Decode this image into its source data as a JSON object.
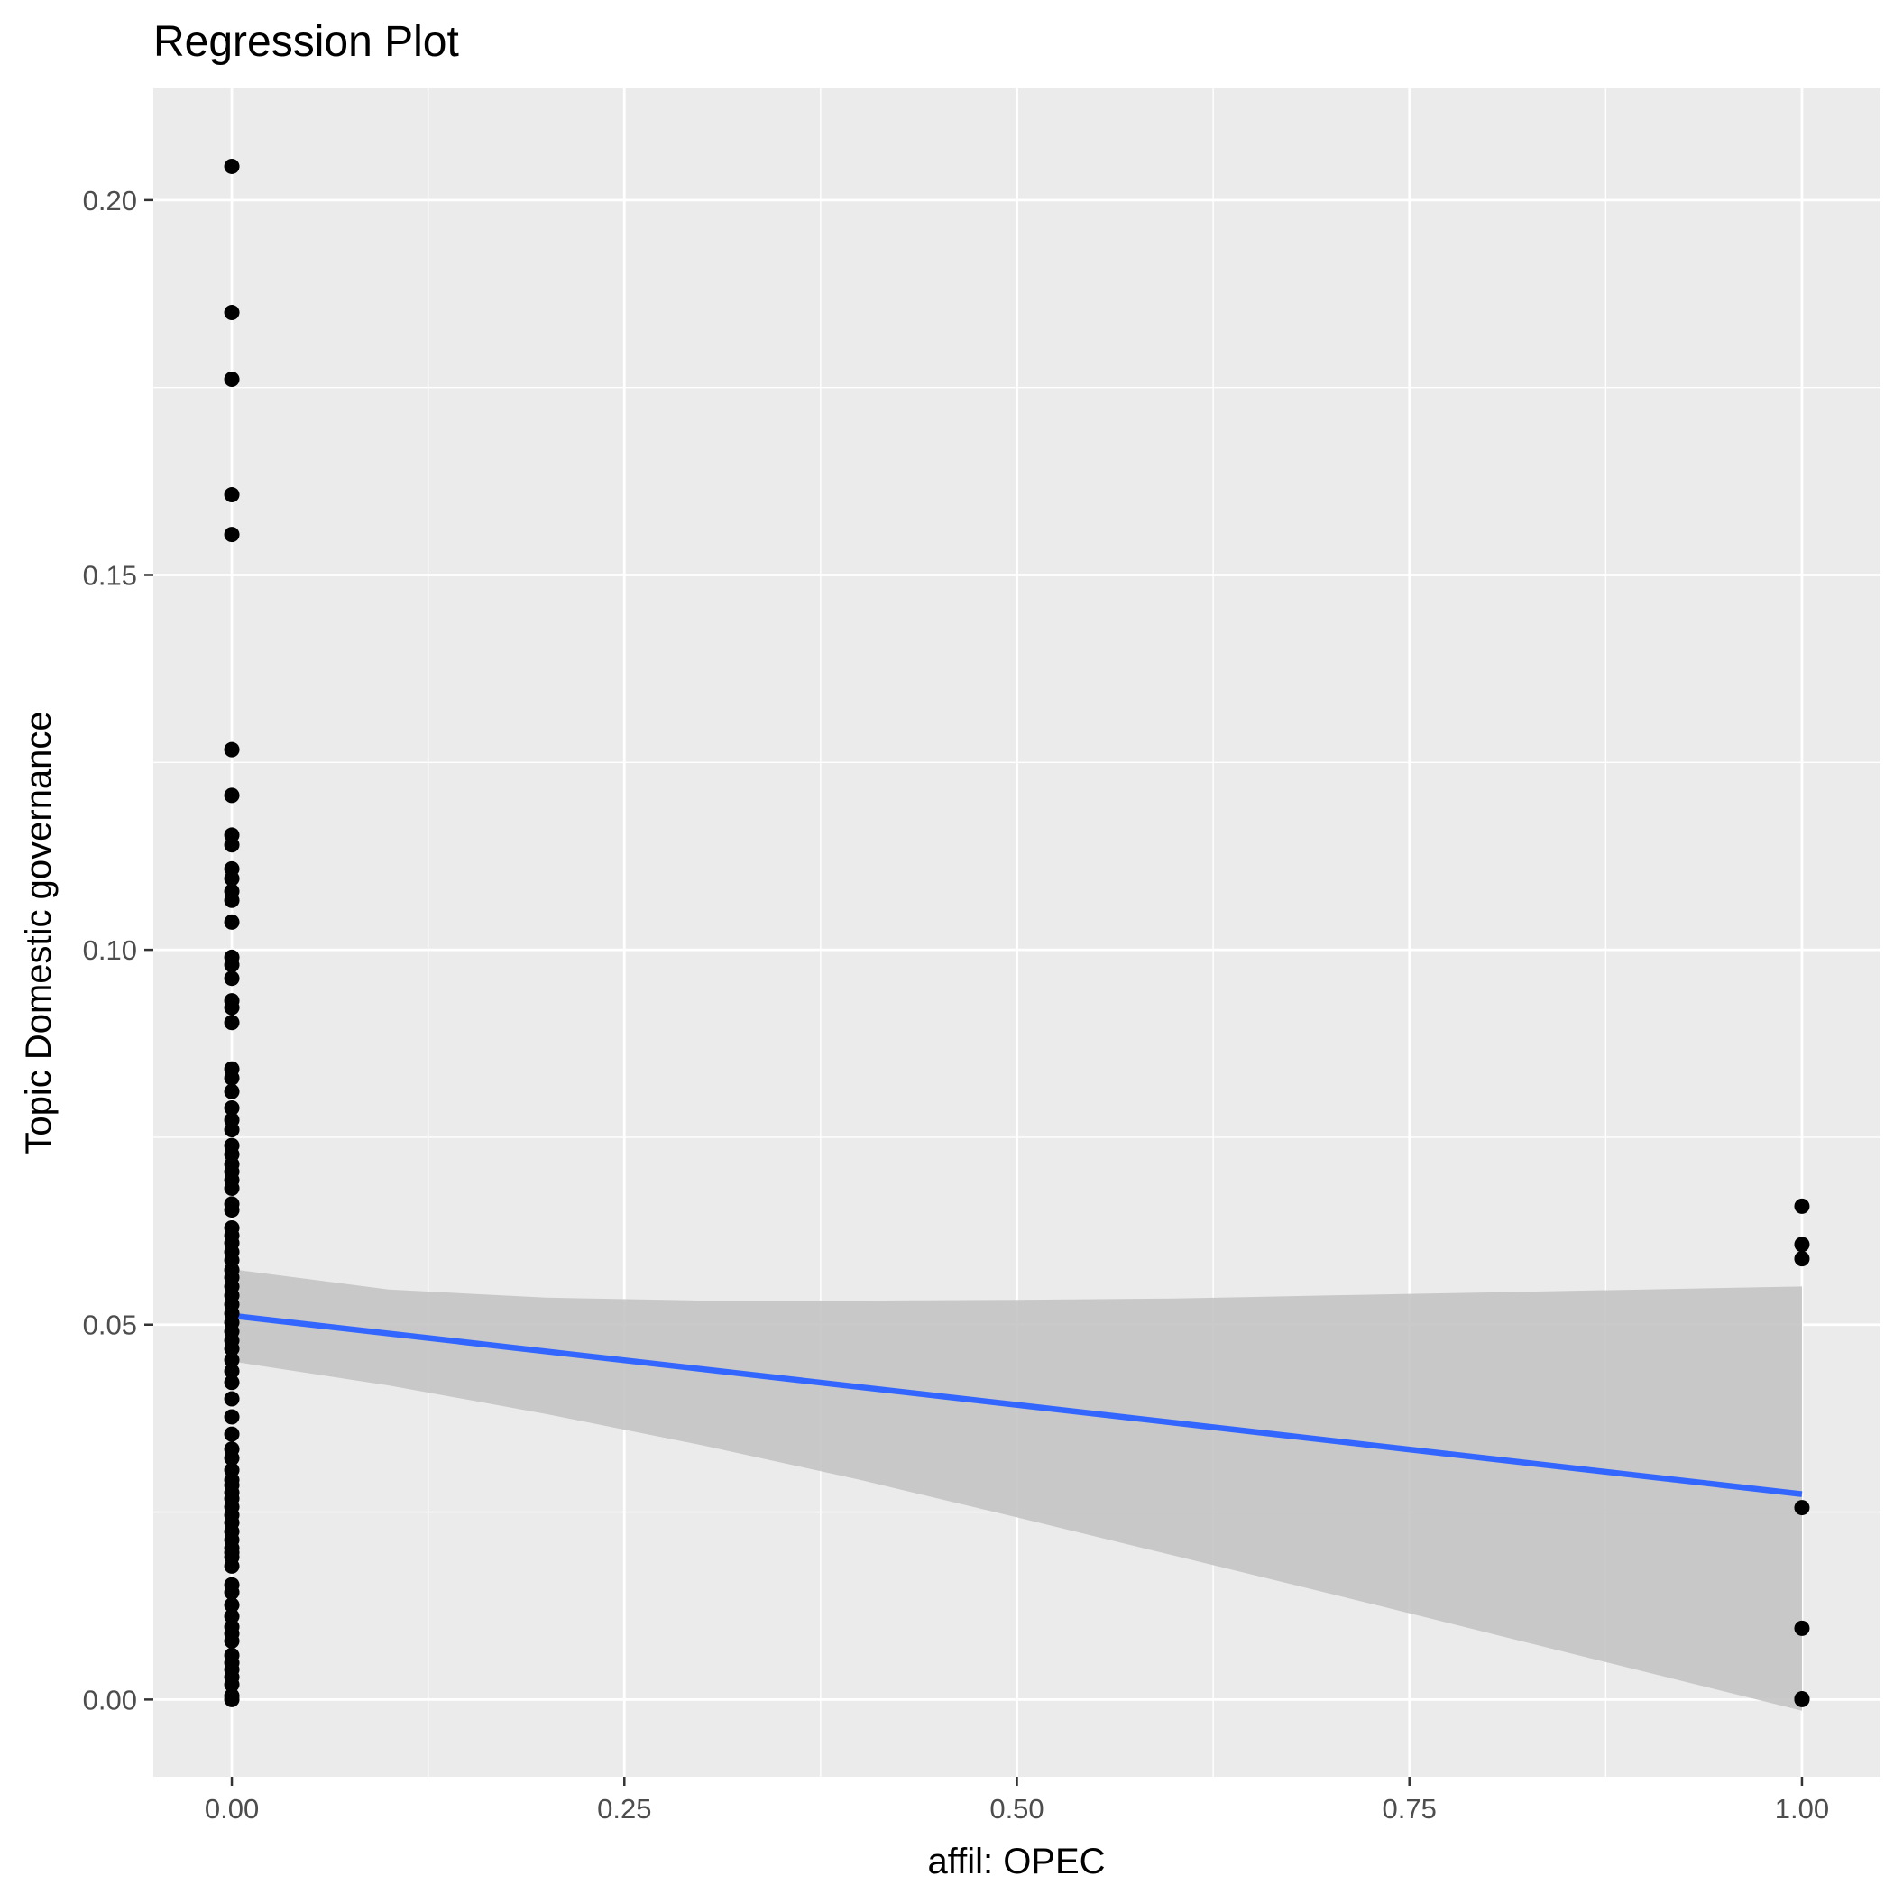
{
  "chart_data": {
    "type": "scatter",
    "title": "Regression Plot",
    "xlabel": "affil: OPEC",
    "ylabel": "Topic Domestic governance",
    "xlim": [
      -0.05,
      1.05
    ],
    "ylim": [
      -0.0103,
      0.2149
    ],
    "x_ticks": [
      0.0,
      0.25,
      0.5,
      0.75,
      1.0
    ],
    "x_tick_labels": [
      "0.00",
      "0.25",
      "0.50",
      "0.75",
      "1.00"
    ],
    "y_ticks": [
      0.0,
      0.05,
      0.1,
      0.15,
      0.2
    ],
    "y_tick_labels": [
      "0.00",
      "0.05",
      "0.10",
      "0.15",
      "0.20"
    ],
    "grid": true,
    "colors": {
      "panel": "#ebebeb",
      "grid": "#ffffff",
      "points": "#000000",
      "fit_line": "#3366ff",
      "confidence_band": "#c4c4c4"
    },
    "series": [
      {
        "kind": "points",
        "x": [
          0,
          0,
          0,
          0,
          0,
          0,
          0,
          0,
          0,
          0,
          0,
          0,
          0,
          0,
          0,
          0,
          0,
          0,
          0,
          0,
          0,
          0,
          0,
          0,
          0,
          0,
          0,
          0,
          0,
          0,
          0,
          0,
          0,
          0,
          0,
          0,
          0,
          0,
          0,
          0,
          0,
          0,
          0,
          0,
          0,
          0,
          0,
          0,
          0,
          0,
          0,
          0,
          0,
          0,
          0,
          0,
          0,
          0,
          0,
          0,
          0,
          0,
          0,
          0,
          0,
          0,
          0,
          0,
          0,
          0,
          0,
          0,
          0,
          0,
          0,
          0,
          0,
          0,
          0,
          0,
          0,
          0,
          0,
          0,
          0,
          1,
          1,
          1,
          1,
          1,
          1,
          1
        ],
        "y": [
          0.2045,
          0.185,
          0.1761,
          0.1607,
          0.1554,
          0.1267,
          0.1206,
          0.1153,
          0.114,
          0.1108,
          0.1095,
          0.1078,
          0.1066,
          0.1037,
          0.099,
          0.098,
          0.0962,
          0.0932,
          0.0923,
          0.0903,
          0.0841,
          0.0829,
          0.0811,
          0.0789,
          0.0773,
          0.076,
          0.0739,
          0.0727,
          0.0714,
          0.0704,
          0.0693,
          0.0682,
          0.0661,
          0.0653,
          0.0629,
          0.0619,
          0.0609,
          0.0597,
          0.0586,
          0.0573,
          0.0563,
          0.0551,
          0.0539,
          0.0527,
          0.0515,
          0.0503,
          0.0491,
          0.0479,
          0.0468,
          0.0453,
          0.0438,
          0.0423,
          0.0401,
          0.0377,
          0.0354,
          0.0334,
          0.0322,
          0.0306,
          0.0293,
          0.0286,
          0.0276,
          0.0268,
          0.0257,
          0.0246,
          0.0236,
          0.0224,
          0.0213,
          0.0202,
          0.0196,
          0.019,
          0.0178,
          0.0153,
          0.0143,
          0.0126,
          0.0111,
          0.0097,
          0.0088,
          0.0078,
          0.0059,
          0.0049,
          0.004,
          0.003,
          0.002,
          0.0005,
          0.0,
          0.0658,
          0.0607,
          0.0588,
          0.0256,
          0.0095,
          0.0001,
          0.0
        ]
      },
      {
        "kind": "fit",
        "x": [
          0,
          1
        ],
        "y": [
          0.0512,
          0.0274
        ]
      },
      {
        "kind": "band",
        "x": [
          0,
          0.1,
          0.2,
          0.3,
          0.4,
          0.5,
          0.6,
          0.7,
          0.8,
          0.9,
          1.0
        ],
        "lower": [
          0.0451,
          0.0419,
          0.0381,
          0.0339,
          0.0293,
          0.0243,
          0.0192,
          0.0141,
          0.0089,
          0.0037,
          -0.0015
        ],
        "upper": [
          0.0574,
          0.0547,
          0.0536,
          0.0532,
          0.0532,
          0.0533,
          0.0535,
          0.0539,
          0.0543,
          0.0547,
          0.0551
        ]
      }
    ]
  }
}
